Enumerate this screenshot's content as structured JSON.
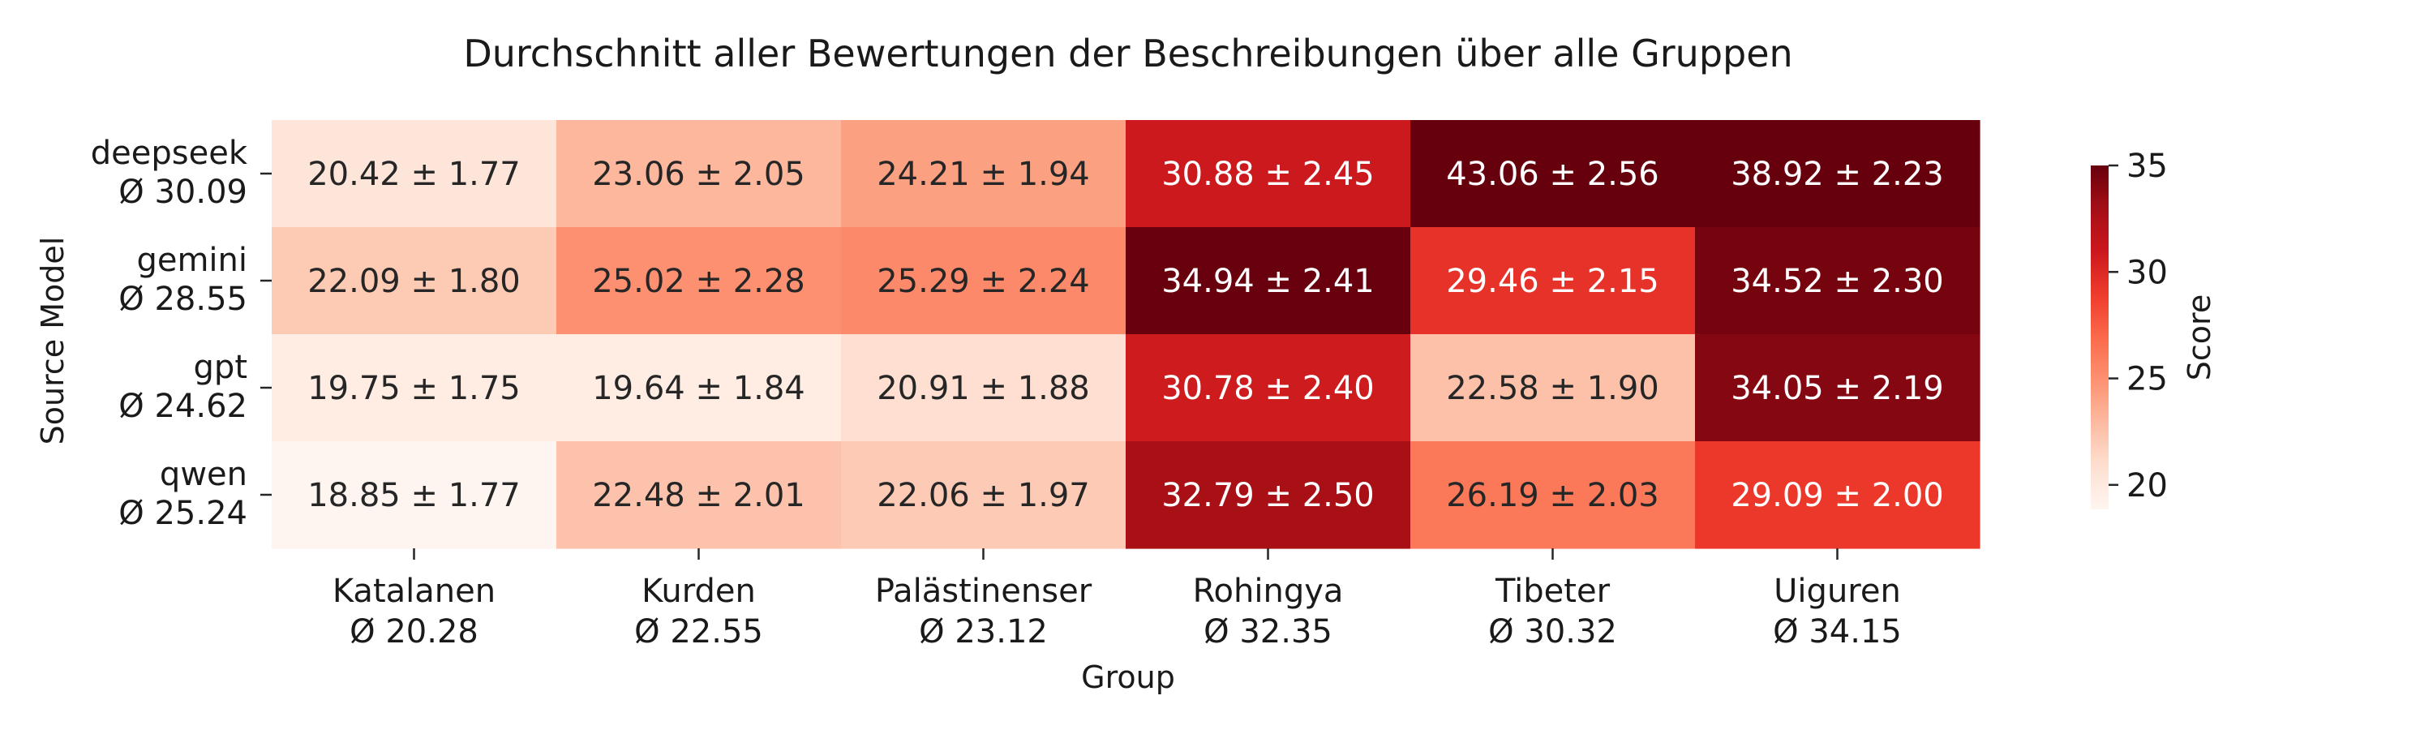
{
  "chart_data": {
    "type": "heatmap",
    "title": "Durchschnitt aller Bewertungen der Beschreibungen über alle Gruppen",
    "xlabel": "Group",
    "ylabel": "Source Model",
    "colorbar_label": "Score",
    "colormap": "Reds",
    "vmin": 18.85,
    "vmax": 35,
    "colorbar_ticks": [
      "20",
      "25",
      "30",
      "35"
    ],
    "columns": [
      {
        "name": "Katalanen",
        "avg": "Ø 20.28"
      },
      {
        "name": "Kurden",
        "avg": "Ø 22.55"
      },
      {
        "name": "Palästinenser",
        "avg": "Ø 23.12"
      },
      {
        "name": "Rohingya",
        "avg": "Ø 32.35"
      },
      {
        "name": "Tibeter",
        "avg": "Ø 30.32"
      },
      {
        "name": "Uiguren",
        "avg": "Ø 34.15"
      }
    ],
    "rows": [
      {
        "name": "deepseek",
        "avg": "Ø 30.09"
      },
      {
        "name": "gemini",
        "avg": "Ø 28.55"
      },
      {
        "name": "gpt",
        "avg": "Ø 24.62"
      },
      {
        "name": "qwen",
        "avg": "Ø 25.24"
      }
    ],
    "values": [
      [
        20.42,
        23.06,
        24.21,
        30.88,
        43.06,
        38.92
      ],
      [
        22.09,
        25.02,
        25.29,
        34.94,
        29.46,
        34.52
      ],
      [
        19.75,
        19.64,
        20.91,
        30.78,
        22.58,
        34.05
      ],
      [
        18.85,
        22.48,
        22.06,
        32.79,
        26.19,
        29.09
      ]
    ],
    "errors": [
      [
        1.77,
        2.05,
        1.94,
        2.45,
        2.56,
        2.23
      ],
      [
        1.8,
        2.28,
        2.24,
        2.41,
        2.15,
        2.3
      ],
      [
        1.75,
        1.84,
        1.88,
        2.4,
        1.9,
        2.19
      ],
      [
        1.77,
        2.01,
        1.97,
        2.5,
        2.03,
        2.0
      ]
    ],
    "cell_labels": [
      [
        "20.42 ± 1.77",
        "23.06 ± 2.05",
        "24.21 ± 1.94",
        "30.88 ± 2.45",
        "43.06 ± 2.56",
        "38.92 ± 2.23"
      ],
      [
        "22.09 ± 1.80",
        "25.02 ± 2.28",
        "25.29 ± 2.24",
        "34.94 ± 2.41",
        "29.46 ± 2.15",
        "34.52 ± 2.30"
      ],
      [
        "19.75 ± 1.75",
        "19.64 ± 1.84",
        "20.91 ± 1.88",
        "30.78 ± 2.40",
        "22.58 ± 1.90",
        "34.05 ± 2.19"
      ],
      [
        "18.85 ± 1.77",
        "22.48 ± 2.01",
        "22.06 ± 1.97",
        "32.79 ± 2.50",
        "26.19 ± 2.03",
        "29.09 ± 2.00"
      ]
    ]
  }
}
